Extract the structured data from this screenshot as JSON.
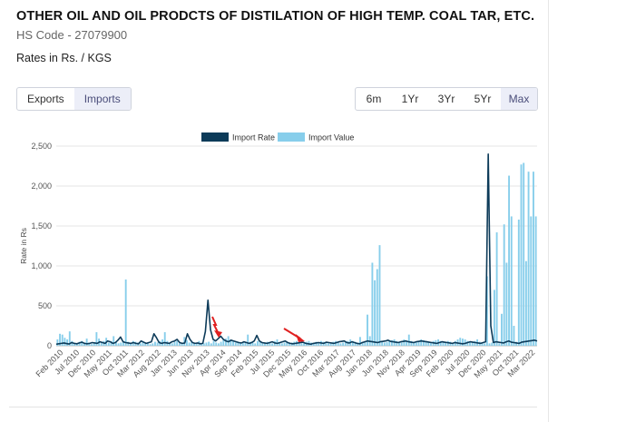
{
  "header": {
    "title": "OTHER OIL AND OIL PRODCTS OF DISTILATION OF HIGH TEMP. COAL TAR, ETC.",
    "hs_code": "HS Code - 27079900",
    "rates_label": "Rates in Rs. / KGS"
  },
  "tabs": [
    {
      "label": "Exports",
      "active": false
    },
    {
      "label": "Imports",
      "active": true
    }
  ],
  "ranges": [
    {
      "label": "6m",
      "active": false
    },
    {
      "label": "1Yr",
      "active": false
    },
    {
      "label": "3Yr",
      "active": false
    },
    {
      "label": "5Yr",
      "active": false
    },
    {
      "label": "Max",
      "active": true
    }
  ],
  "colors": {
    "rate_line": "#0d3b59",
    "value_bar": "#87ceeb",
    "annotation_arrow": "#e02020",
    "active_tab_bg": "#eceef8"
  },
  "chart_data": {
    "type": "bar",
    "ylabel": "Rate in Rs",
    "ylim": [
      0,
      2500
    ],
    "yticks": [
      "0",
      "500",
      "1,000",
      "1,500",
      "2,000",
      "2,500"
    ],
    "grid": true,
    "legend_position": "top-center",
    "xticks": [
      "Feb 2010",
      "Jul 2010",
      "Dec 2010",
      "May 2011",
      "Oct 2011",
      "Mar 2012",
      "Aug 2012",
      "Jan 2013",
      "Jun 2013",
      "Nov 2013",
      "Apr 2014",
      "Sep 2014",
      "Feb 2015",
      "Jul 2015",
      "Dec 2015",
      "May 2016",
      "Oct 2016",
      "Mar 2017",
      "Aug 2017",
      "Jan 2018",
      "Jun 2018",
      "Nov 2018",
      "Apr 2019",
      "Sep 2019",
      "Feb 2020",
      "Jul 2020",
      "Dec 2020",
      "May 2021",
      "Oct 2021",
      "Mar 2022"
    ],
    "annotations": [
      {
        "type": "arrow",
        "at": "Apr 2014"
      },
      {
        "type": "arrow",
        "at": "May 2016"
      }
    ],
    "series": [
      {
        "name": "Import Rate",
        "kind": "line",
        "values": [
          20,
          25,
          30,
          35,
          28,
          22,
          40,
          30,
          25,
          35,
          45,
          30,
          25,
          30,
          40,
          35,
          30,
          50,
          40,
          30,
          60,
          50,
          30,
          40,
          70,
          110,
          50,
          40,
          35,
          30,
          40,
          30,
          25,
          60,
          45,
          30,
          40,
          50,
          150,
          100,
          40,
          30,
          40,
          35,
          30,
          50,
          60,
          80,
          40,
          30,
          35,
          150,
          80,
          40,
          30,
          35,
          25,
          30,
          180,
          570,
          200,
          80,
          60,
          90,
          120,
          80,
          60,
          50,
          70,
          60,
          50,
          40,
          35,
          50,
          40,
          30,
          40,
          60,
          130,
          60,
          40,
          35,
          30,
          40,
          50,
          35,
          30,
          40,
          50,
          60,
          40,
          30,
          25,
          30,
          35,
          40,
          45,
          30,
          25,
          20,
          30,
          35,
          40,
          35,
          30,
          45,
          40,
          35,
          30,
          40,
          50,
          55,
          60,
          40,
          35,
          50,
          40,
          30,
          25,
          40,
          50,
          60,
          55,
          50,
          45,
          40,
          50,
          55,
          60,
          70,
          55,
          50,
          45,
          40,
          50,
          55,
          60,
          50,
          45,
          40,
          50,
          55,
          60,
          55,
          50,
          45,
          40,
          35,
          30,
          40,
          50,
          45,
          40,
          35,
          30,
          40,
          35,
          30,
          25,
          30,
          40,
          50,
          45,
          40,
          35,
          30,
          40,
          50,
          2400,
          250,
          40,
          50,
          45,
          40,
          35,
          50,
          60,
          45,
          40,
          35,
          30,
          45,
          50,
          55,
          60,
          65,
          70,
          60
        ]
      },
      {
        "name": "Import Value",
        "kind": "bar",
        "values": [
          80,
          150,
          140,
          100,
          80,
          180,
          60,
          40,
          30,
          50,
          60,
          40,
          90,
          40,
          20,
          30,
          170,
          90,
          50,
          60,
          100,
          40,
          60,
          120,
          50,
          30,
          40,
          60,
          830,
          50,
          40,
          60,
          50,
          40,
          30,
          60,
          30,
          40,
          20,
          30,
          50,
          40,
          60,
          80,
          170,
          60,
          40,
          30,
          50,
          60,
          30,
          40,
          110,
          70,
          40,
          50,
          30,
          40,
          60,
          20,
          30,
          40,
          50,
          30,
          60,
          40,
          30,
          50,
          70,
          90,
          120,
          80,
          60,
          40,
          50,
          30,
          40,
          50,
          140,
          50,
          40,
          30,
          60,
          50,
          40,
          30,
          50,
          40,
          30,
          60,
          80,
          40,
          30,
          40,
          50,
          30,
          40,
          50,
          60,
          40,
          30,
          40,
          50,
          60,
          40,
          30,
          50,
          40,
          60,
          50,
          40,
          30,
          40,
          50,
          60,
          40,
          30,
          40,
          50,
          60,
          80,
          60,
          50,
          40,
          110,
          50,
          60,
          390,
          120,
          1040,
          820,
          960,
          1260,
          60,
          40,
          50,
          60,
          70,
          80,
          60,
          50,
          40,
          80,
          60,
          140,
          60,
          50,
          40,
          60,
          80,
          70,
          60,
          50,
          40,
          60,
          70,
          80,
          60,
          50,
          40,
          60,
          50,
          40,
          60,
          80,
          100,
          90,
          80,
          60,
          50,
          40,
          60,
          80,
          50,
          40,
          30,
          870,
          30,
          40,
          700,
          1420,
          30,
          400,
          1520,
          1040,
          2130,
          1620,
          250,
          50,
          1580,
          2270,
          2290,
          1060,
          2180,
          1620,
          2180,
          1620
        ]
      }
    ]
  }
}
